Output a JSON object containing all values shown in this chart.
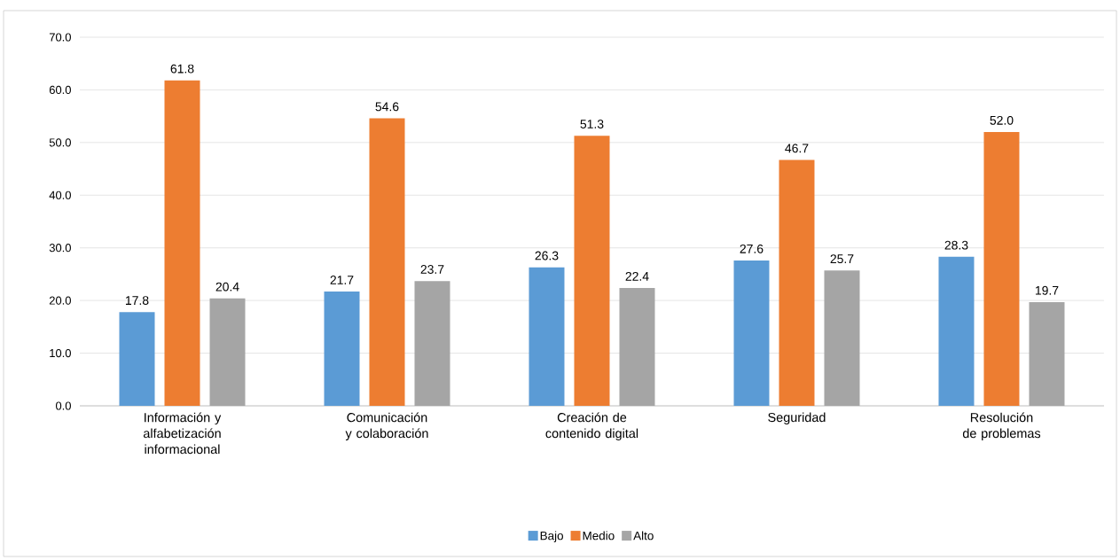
{
  "chart_data": {
    "type": "bar",
    "categories": [
      "Información y alfabetización informacional",
      "Comunicación y colaboración",
      "Creación de contenido digital",
      "Seguridad",
      "Resolución de problemas"
    ],
    "series": [
      {
        "name": "Bajo",
        "color": "#5b9bd5",
        "values": [
          17.8,
          21.7,
          26.3,
          27.6,
          28.3
        ],
        "value_labels": [
          "17.8",
          "21.7",
          "26.3",
          "27.6",
          "28.3"
        ]
      },
      {
        "name": "Medio",
        "color": "#ed7d31",
        "values": [
          61.8,
          54.6,
          51.3,
          46.7,
          52.0
        ],
        "value_labels": [
          "61.8",
          "54.6",
          "51.3",
          "46.7",
          "52.0"
        ]
      },
      {
        "name": "Alto",
        "color": "#a5a5a5",
        "values": [
          20.4,
          23.7,
          22.4,
          25.7,
          19.7
        ],
        "value_labels": [
          "20.4",
          "23.7",
          "22.4",
          "25.7",
          "19.7"
        ]
      }
    ],
    "ylim": [
      0,
      70
    ],
    "yticks": [
      {
        "value": 0,
        "label": "0.0"
      },
      {
        "value": 10,
        "label": "10.0"
      },
      {
        "value": 20,
        "label": "20.0"
      },
      {
        "value": 30,
        "label": "30.0"
      },
      {
        "value": 40,
        "label": "40.0"
      },
      {
        "value": 50,
        "label": "50.0"
      },
      {
        "value": 60,
        "label": "60.0"
      },
      {
        "value": 70,
        "label": "70.0"
      }
    ],
    "grid": "y",
    "legend": "bottom"
  }
}
